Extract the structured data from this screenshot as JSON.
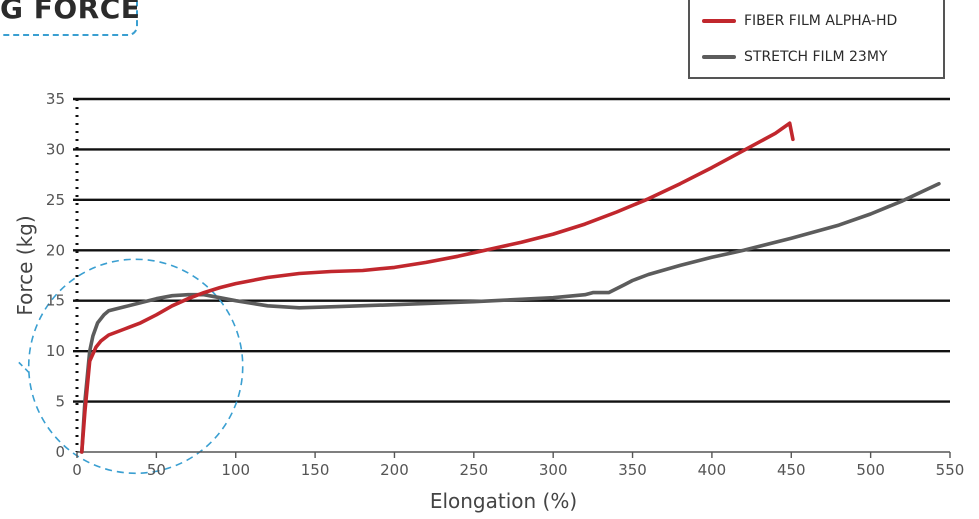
{
  "page": {
    "title": "G FORCE"
  },
  "legend": {
    "items": [
      {
        "label": "FIBER FILM ALPHA-HD",
        "color": "#c1272d"
      },
      {
        "label": "STRETCH FILM 23MY",
        "color": "#5c5c5c"
      }
    ]
  },
  "chart_data": {
    "type": "line",
    "title": "G FORCE",
    "xlabel": "Elongation (%)",
    "ylabel": "Force (kg)",
    "xlim": [
      0,
      550
    ],
    "ylim": [
      0,
      35
    ],
    "xticks": [
      0,
      50,
      100,
      150,
      200,
      250,
      300,
      350,
      400,
      450,
      500,
      550
    ],
    "yticks": [
      0,
      5,
      10,
      15,
      20,
      25,
      30,
      35
    ],
    "grid": "horizontal",
    "legend_position": "top-right",
    "highlight": {
      "shape": "dashed-circle",
      "center": [
        37,
        8.5
      ],
      "color": "#3a9fd1"
    },
    "series": [
      {
        "name": "FIBER FILM ALPHA-HD",
        "color": "#c1272d",
        "x": [
          3,
          5,
          8,
          12,
          15,
          20,
          25,
          30,
          40,
          50,
          60,
          70,
          80,
          90,
          100,
          120,
          140,
          160,
          180,
          200,
          220,
          240,
          260,
          280,
          300,
          320,
          340,
          360,
          380,
          400,
          420,
          440,
          449,
          451
        ],
        "y": [
          0,
          4,
          9,
          10.4,
          11,
          11.6,
          11.9,
          12.2,
          12.8,
          13.6,
          14.5,
          15.2,
          15.8,
          16.3,
          16.7,
          17.3,
          17.7,
          17.9,
          18.0,
          18.3,
          18.8,
          19.4,
          20.1,
          20.8,
          21.6,
          22.6,
          23.8,
          25.1,
          26.6,
          28.2,
          29.9,
          31.6,
          32.6,
          31.0
        ]
      },
      {
        "name": "STRETCH FILM 23MY",
        "color": "#5c5c5c",
        "x": [
          3,
          5,
          8,
          10,
          13,
          17,
          20,
          30,
          40,
          50,
          60,
          70,
          80,
          90,
          100,
          120,
          140,
          160,
          200,
          250,
          300,
          320,
          325,
          335,
          345,
          350,
          360,
          380,
          400,
          420,
          450,
          480,
          500,
          520,
          543
        ],
        "y": [
          0,
          5,
          10,
          11.5,
          12.8,
          13.6,
          14,
          14.4,
          14.8,
          15.2,
          15.5,
          15.6,
          15.6,
          15.3,
          15.0,
          14.5,
          14.3,
          14.4,
          14.6,
          14.9,
          15.3,
          15.6,
          15.8,
          15.8,
          16.6,
          17.0,
          17.6,
          18.5,
          19.3,
          20.0,
          21.2,
          22.5,
          23.6,
          24.9,
          26.6
        ]
      }
    ]
  }
}
